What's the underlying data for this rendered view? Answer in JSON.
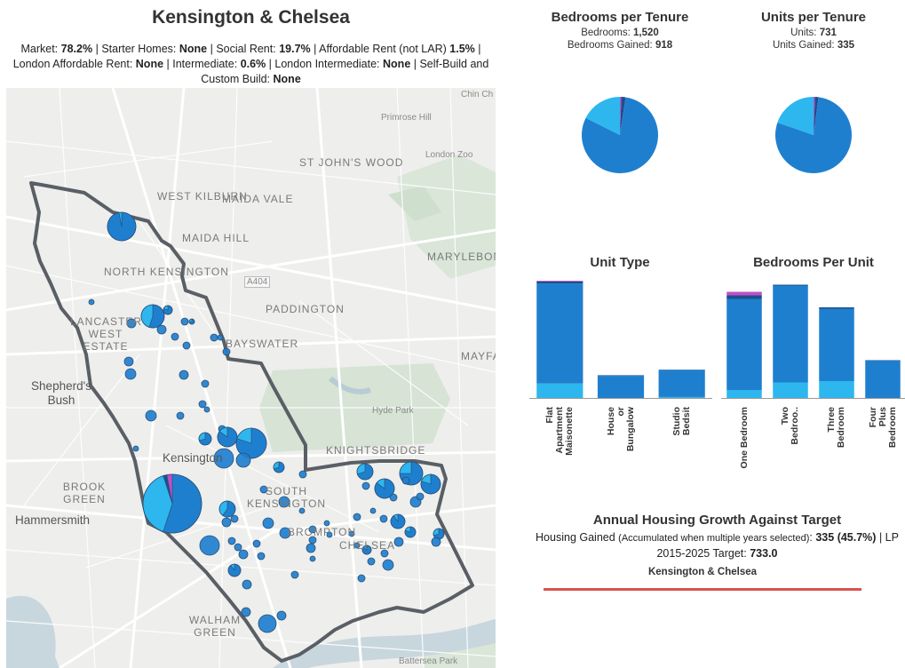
{
  "header": {
    "title": "Kensington & Chelsea",
    "summary": [
      {
        "label": "Market:",
        "value": "78.2%"
      },
      {
        "label": "Starter Homes:",
        "value": "None"
      },
      {
        "label": "Social Rent:",
        "value": "19.7%"
      },
      {
        "label": "Affordable Rent (not LAR)",
        "value": "1.5%"
      },
      {
        "label": "London Affordable Rent:",
        "value": "None"
      },
      {
        "label": "Intermediate:",
        "value": "0.6%"
      },
      {
        "label": "London Intermediate:",
        "value": "None"
      },
      {
        "label": "Self-Build and Custom Build:",
        "value": "None"
      }
    ]
  },
  "map": {
    "area_labels": [
      "WEST KILBURN",
      "MAIDA VALE",
      "MAIDA HILL",
      "NORTH KENSINGTON",
      "LANCASTER WEST ESTATE",
      "PADDINGTON",
      "BAYSWATER",
      "ST JOHN'S WOOD",
      "MARYLEBONE",
      "KNIGHTSBRIDGE",
      "SOUTH KENSINGTON",
      "BROMPTON",
      "CHELSEA",
      "BROOK GREEN",
      "WALHAM GREEN",
      "MAYFAIR"
    ],
    "place_labels": [
      "Shepherd's Bush",
      "Kensington",
      "Hammersmith"
    ],
    "small_labels": [
      "Primrose Hill",
      "London Zoo",
      "Hyde Park",
      "Battersea Park",
      "A404",
      "Chin Ch"
    ]
  },
  "colors": {
    "market": "#1f7fcf",
    "social": "#2db7ee",
    "affordable": "#1d4f8c",
    "intermediate": "#c050c8",
    "boundary": "#5a5f66",
    "target_line": "#d9534f"
  },
  "chart_data": [
    {
      "id": "bedrooms-per-tenure",
      "type": "pie",
      "title": "Bedrooms per Tenure",
      "lines": [
        {
          "label": "Bedrooms:",
          "value": "1,520"
        },
        {
          "label": "Bedrooms Gained:",
          "value": "918"
        }
      ],
      "slices": [
        {
          "name": "Market",
          "value": 80.0,
          "color": "#1f7fcf"
        },
        {
          "name": "Social Rent",
          "value": 17.6,
          "color": "#2db7ee"
        },
        {
          "name": "Affordable Rent (not LAR)",
          "value": 1.8,
          "color": "#1d4f8c"
        },
        {
          "name": "Intermediate",
          "value": 0.6,
          "color": "#c050c8"
        }
      ]
    },
    {
      "id": "units-per-tenure",
      "type": "pie",
      "title": "Units per Tenure",
      "lines": [
        {
          "label": "Units:",
          "value": "731"
        },
        {
          "label": "Units Gained:",
          "value": "335"
        }
      ],
      "slices": [
        {
          "name": "Market",
          "value": 78.2,
          "color": "#1f7fcf"
        },
        {
          "name": "Social Rent",
          "value": 19.7,
          "color": "#2db7ee"
        },
        {
          "name": "Affordable Rent (not LAR)",
          "value": 1.5,
          "color": "#1d4f8c"
        },
        {
          "name": "Intermediate",
          "value": 0.6,
          "color": "#c050c8"
        }
      ]
    },
    {
      "id": "unit-type",
      "type": "bar",
      "stacked": true,
      "title": "Unit Type",
      "categories": [
        "Flat Apartment Maisonette",
        "House or Bungalow",
        "Studio Bedsit"
      ],
      "ymax": 600,
      "series": [
        {
          "name": "Social Rent",
          "color": "#2db7ee",
          "values": [
            75,
            0,
            5
          ]
        },
        {
          "name": "Market",
          "color": "#1f7fcf",
          "values": [
            520,
            115,
            140
          ]
        },
        {
          "name": "Affordable Rent (not LAR)",
          "color": "#1d4f8c",
          "values": [
            10,
            3,
            2
          ]
        },
        {
          "name": "Intermediate",
          "color": "#c050c8",
          "values": [
            4,
            0,
            0
          ]
        }
      ]
    },
    {
      "id": "bedrooms-per-unit",
      "type": "bar",
      "stacked": true,
      "title": "Bedrooms Per Unit",
      "categories": [
        "One Bedroom",
        "Two Bedroo..",
        "Three Bedroom",
        "Four Plus Bedroom"
      ],
      "ymax": 260,
      "series": [
        {
          "name": "Social Rent",
          "color": "#2db7ee",
          "values": [
            18,
            35,
            38,
            0
          ]
        },
        {
          "name": "Market",
          "color": "#1f7fcf",
          "values": [
            205,
            218,
            163,
            84
          ]
        },
        {
          "name": "Affordable Rent (not LAR)",
          "color": "#1d4f8c",
          "values": [
            8,
            2,
            3,
            1
          ]
        },
        {
          "name": "Intermediate",
          "color": "#c050c8",
          "values": [
            8,
            0,
            0,
            0
          ]
        }
      ]
    }
  ],
  "growth": {
    "title": "Annual Housing Growth Against Target",
    "gained_label": "Housing Gained",
    "gained_note": "(Accumulated when multiple years selected)",
    "gained_value": "335",
    "gained_pct": "(45.7%)",
    "target_label": "LP 2015-2025 Target:",
    "target_value": "733.0",
    "area": "Kensington & Chelsea"
  }
}
